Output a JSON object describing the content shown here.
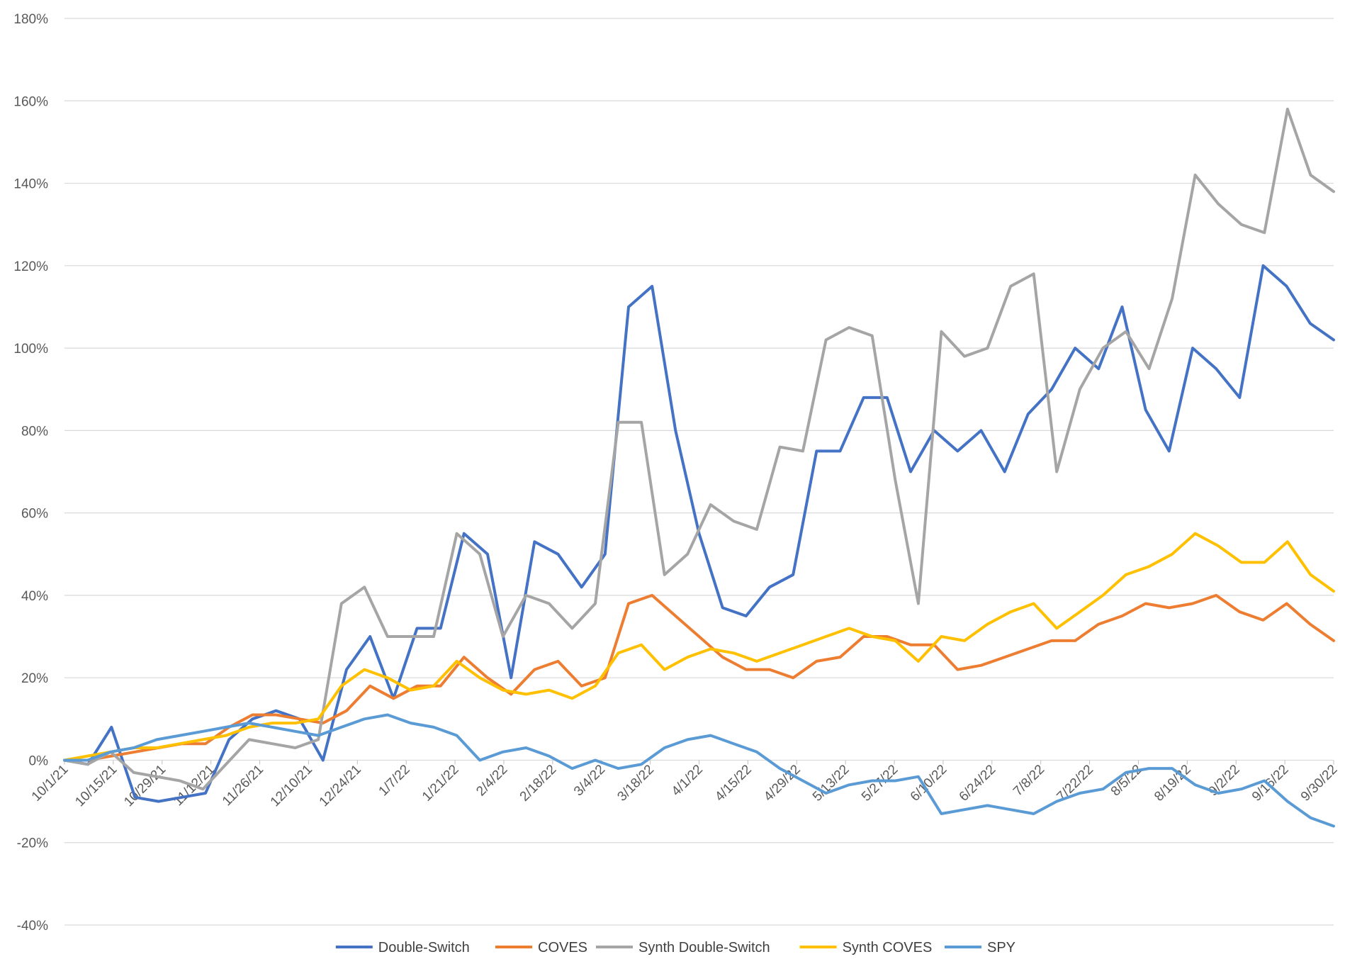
{
  "chart_data": {
    "type": "line",
    "title": "",
    "xlabel": "",
    "ylabel": "",
    "ylim": [
      -40,
      180
    ],
    "yticks": [
      "-40%",
      "-20%",
      "0%",
      "20%",
      "40%",
      "60%",
      "80%",
      "100%",
      "120%",
      "140%",
      "160%",
      "180%"
    ],
    "xticks": [
      "10/1/21",
      "10/15/21",
      "10/29/21",
      "11/12/21",
      "11/26/21",
      "12/10/21",
      "12/24/21",
      "1/7/22",
      "1/21/22",
      "2/4/22",
      "2/18/22",
      "3/4/22",
      "3/18/22",
      "4/1/22",
      "4/15/22",
      "4/29/22",
      "5/13/22",
      "5/27/22",
      "6/10/22",
      "6/24/22",
      "7/8/22",
      "7/22/22",
      "8/5/22",
      "8/19/22",
      "9/2/22",
      "9/16/22",
      "9/30/22"
    ],
    "grid": true,
    "legend": "bottom",
    "series": [
      {
        "name": "Double-Switch",
        "color": "#4472C4",
        "values": [
          0,
          -1,
          8,
          -9,
          -10,
          -9,
          -8,
          5,
          10,
          12,
          10,
          0,
          22,
          30,
          15,
          32,
          32,
          55,
          50,
          20,
          53,
          50,
          42,
          50,
          110,
          115,
          80,
          55,
          37,
          35,
          42,
          45,
          75,
          75,
          88,
          88,
          70,
          80,
          75,
          80,
          70,
          84,
          90,
          100,
          95,
          110,
          85,
          75,
          100,
          95,
          88,
          120,
          115,
          106,
          102
        ]
      },
      {
        "name": "COVES",
        "color": "#ED7D31",
        "values": [
          0,
          0,
          1,
          2,
          3,
          4,
          4,
          8,
          11,
          11,
          10,
          9,
          12,
          18,
          15,
          18,
          18,
          25,
          20,
          16,
          22,
          24,
          18,
          20,
          38,
          40,
          35,
          30,
          25,
          22,
          22,
          20,
          24,
          25,
          30,
          30,
          28,
          28,
          22,
          23,
          25,
          27,
          29,
          29,
          33,
          35,
          38,
          37,
          38,
          40,
          36,
          34,
          38,
          33,
          29
        ]
      },
      {
        "name": "Synth Double-Switch",
        "color": "#A5A5A5",
        "values": [
          0,
          -1,
          2,
          -3,
          -4,
          -5,
          -7,
          -1,
          5,
          4,
          3,
          5,
          38,
          42,
          30,
          30,
          30,
          55,
          50,
          30,
          40,
          38,
          32,
          38,
          82,
          82,
          45,
          50,
          62,
          58,
          56,
          76,
          75,
          102,
          105,
          103,
          68,
          38,
          104,
          98,
          100,
          115,
          118,
          70,
          90,
          100,
          104,
          95,
          112,
          142,
          135,
          130,
          128,
          158,
          142,
          138
        ]
      },
      {
        "name": "Synth COVES",
        "color": "#FFC000",
        "values": [
          0,
          1,
          2,
          3,
          3,
          4,
          5,
          6,
          8,
          9,
          9,
          10,
          18,
          22,
          20,
          17,
          18,
          24,
          20,
          17,
          16,
          17,
          15,
          18,
          26,
          28,
          22,
          25,
          27,
          26,
          24,
          26,
          28,
          30,
          32,
          30,
          29,
          24,
          30,
          29,
          33,
          36,
          38,
          32,
          36,
          40,
          45,
          47,
          50,
          55,
          52,
          48,
          48,
          53,
          45,
          41
        ]
      },
      {
        "name": "SPY",
        "color": "#5B9BD5",
        "values": [
          0,
          0,
          2,
          3,
          5,
          6,
          7,
          8,
          9,
          8,
          7,
          6,
          8,
          10,
          11,
          9,
          8,
          6,
          0,
          2,
          3,
          1,
          -2,
          0,
          -2,
          -1,
          3,
          5,
          6,
          4,
          2,
          -2,
          -5,
          -8,
          -6,
          -5,
          -5,
          -4,
          -13,
          -12,
          -11,
          -12,
          -13,
          -10,
          -8,
          -7,
          -3,
          -2,
          -2,
          -6,
          -8,
          -7,
          -5,
          -10,
          -14,
          -16
        ]
      }
    ]
  }
}
